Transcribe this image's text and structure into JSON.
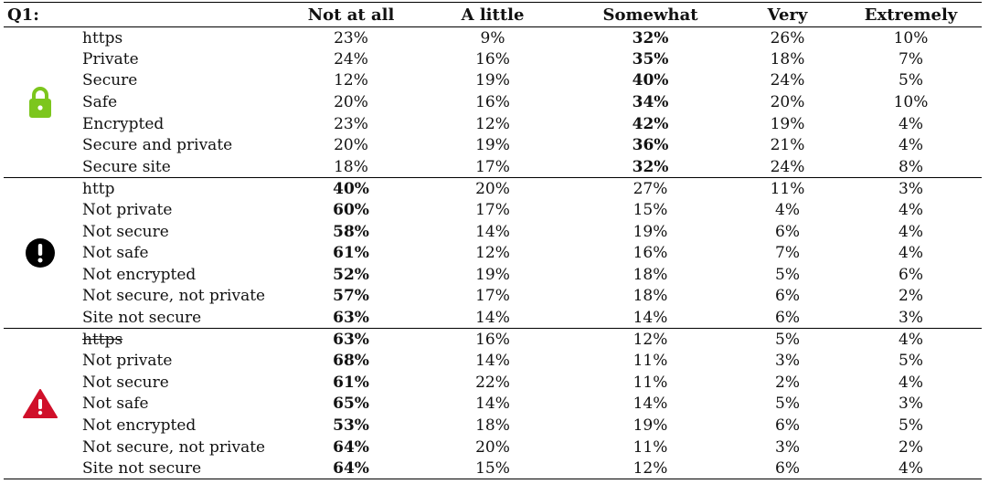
{
  "header": {
    "question": "Q1:",
    "columns": [
      "Not at all",
      "A little",
      "Somewhat",
      "Very",
      "Extremely"
    ]
  },
  "groups": [
    {
      "icon": "lock-icon",
      "icon_color": "#7cc61d",
      "rows": [
        {
          "label": "https",
          "values": [
            "23%",
            "9%",
            "32%",
            "26%",
            "10%"
          ],
          "bold": [
            2
          ],
          "strike": false
        },
        {
          "label": "Private",
          "values": [
            "24%",
            "16%",
            "35%",
            "18%",
            "7%"
          ],
          "bold": [
            2
          ],
          "strike": false
        },
        {
          "label": "Secure",
          "values": [
            "12%",
            "19%",
            "40%",
            "24%",
            "5%"
          ],
          "bold": [
            2
          ],
          "strike": false
        },
        {
          "label": "Safe",
          "values": [
            "20%",
            "16%",
            "34%",
            "20%",
            "10%"
          ],
          "bold": [
            2
          ],
          "strike": false
        },
        {
          "label": "Encrypted",
          "values": [
            "23%",
            "12%",
            "42%",
            "19%",
            "4%"
          ],
          "bold": [
            2
          ],
          "strike": false
        },
        {
          "label": "Secure and private",
          "values": [
            "20%",
            "19%",
            "36%",
            "21%",
            "4%"
          ],
          "bold": [
            2
          ],
          "strike": false
        },
        {
          "label": "Secure site",
          "values": [
            "18%",
            "17%",
            "32%",
            "24%",
            "8%"
          ],
          "bold": [
            2
          ],
          "strike": false
        }
      ]
    },
    {
      "icon": "exclamation-circle-icon",
      "icon_color": "#000000",
      "rows": [
        {
          "label": "http",
          "values": [
            "40%",
            "20%",
            "27%",
            "11%",
            "3%"
          ],
          "bold": [
            0
          ],
          "strike": false
        },
        {
          "label": "Not private",
          "values": [
            "60%",
            "17%",
            "15%",
            "4%",
            "4%"
          ],
          "bold": [
            0
          ],
          "strike": false
        },
        {
          "label": "Not secure",
          "values": [
            "58%",
            "14%",
            "19%",
            "6%",
            "4%"
          ],
          "bold": [
            0
          ],
          "strike": false
        },
        {
          "label": "Not safe",
          "values": [
            "61%",
            "12%",
            "16%",
            "7%",
            "4%"
          ],
          "bold": [
            0
          ],
          "strike": false
        },
        {
          "label": "Not encrypted",
          "values": [
            "52%",
            "19%",
            "18%",
            "5%",
            "6%"
          ],
          "bold": [
            0
          ],
          "strike": false
        },
        {
          "label": "Not secure, not private",
          "values": [
            "57%",
            "17%",
            "18%",
            "6%",
            "2%"
          ],
          "bold": [
            0
          ],
          "strike": false
        },
        {
          "label": "Site not secure",
          "values": [
            "63%",
            "14%",
            "14%",
            "6%",
            "3%"
          ],
          "bold": [
            0
          ],
          "strike": false
        }
      ]
    },
    {
      "icon": "warning-triangle-icon",
      "icon_color": "#d0102a",
      "rows": [
        {
          "label": "https",
          "values": [
            "63%",
            "16%",
            "12%",
            "5%",
            "4%"
          ],
          "bold": [
            0
          ],
          "strike": true
        },
        {
          "label": "Not private",
          "values": [
            "68%",
            "14%",
            "11%",
            "3%",
            "5%"
          ],
          "bold": [
            0
          ],
          "strike": false
        },
        {
          "label": "Not secure",
          "values": [
            "61%",
            "22%",
            "11%",
            "2%",
            "4%"
          ],
          "bold": [
            0
          ],
          "strike": false
        },
        {
          "label": "Not safe",
          "values": [
            "65%",
            "14%",
            "14%",
            "5%",
            "3%"
          ],
          "bold": [
            0
          ],
          "strike": false
        },
        {
          "label": "Not encrypted",
          "values": [
            "53%",
            "18%",
            "19%",
            "6%",
            "5%"
          ],
          "bold": [
            0
          ],
          "strike": false
        },
        {
          "label": "Not secure, not private",
          "values": [
            "64%",
            "20%",
            "11%",
            "3%",
            "2%"
          ],
          "bold": [
            0
          ],
          "strike": false
        },
        {
          "label": "Site not secure",
          "values": [
            "64%",
            "15%",
            "12%",
            "6%",
            "4%"
          ],
          "bold": [
            0
          ],
          "strike": false
        }
      ]
    }
  ]
}
